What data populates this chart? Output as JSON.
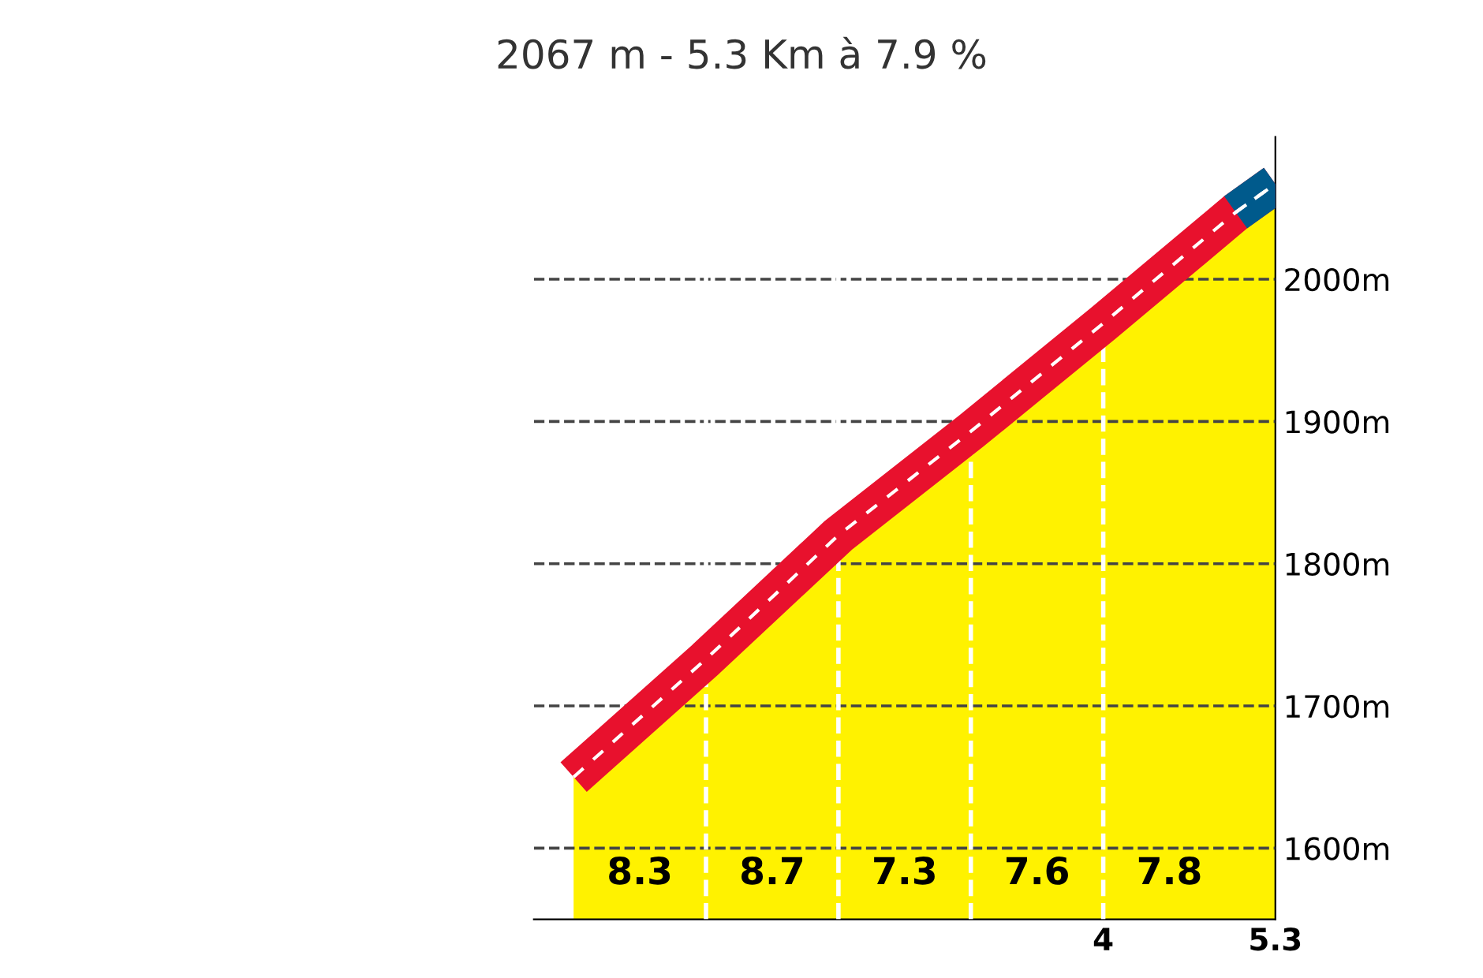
{
  "chart_data": {
    "type": "area",
    "title": "2067 m - 5.3 Km à 7.9 %",
    "x": [
      0,
      1,
      2,
      3,
      4,
      5,
      5.3
    ],
    "series": [
      {
        "color": "#fff200",
        "colors": [
          "#e8112d",
          "#e8112d",
          "#e8112d",
          "#e8112d",
          "#e8112d",
          "#e8112d",
          "#e8112d"
        ],
        "values": [
          1650,
          1733,
          1820,
          1893,
          1969,
          2047,
          2067
        ]
      },
      {
        "type": "line",
        "color": "#005a8c",
        "x": [
          5,
          5.3
        ],
        "values": [
          2047,
          2067
        ]
      }
    ],
    "xlim": [
      -0.3,
      5.3
    ],
    "xticks": [
      4,
      5.3
    ],
    "ylim": [
      1550,
      2100
    ],
    "yticks": [
      {
        "value": 1600,
        "label": "1600m"
      },
      {
        "value": 1700,
        "label": "1700m"
      },
      {
        "value": 1800,
        "label": "1800m"
      },
      {
        "value": 1900,
        "label": "1900m"
      },
      {
        "value": 2000,
        "label": "2000m"
      }
    ],
    "grid": "y",
    "ref_lines": [
      {
        "axis": "x",
        "value": 1,
        "color": "#ffffff",
        "line_style": "dashed"
      },
      {
        "axis": "x",
        "value": 2,
        "color": "#ffffff",
        "line_style": "dashed"
      },
      {
        "axis": "x",
        "value": 3,
        "color": "#ffffff",
        "line_style": "dashed"
      },
      {
        "axis": "x",
        "value": 4,
        "color": "#ffffff",
        "line_style": "dashed"
      }
    ],
    "annotations": [
      "8.3",
      "8.7",
      "7.3",
      "7.6",
      "7.8"
    ]
  }
}
